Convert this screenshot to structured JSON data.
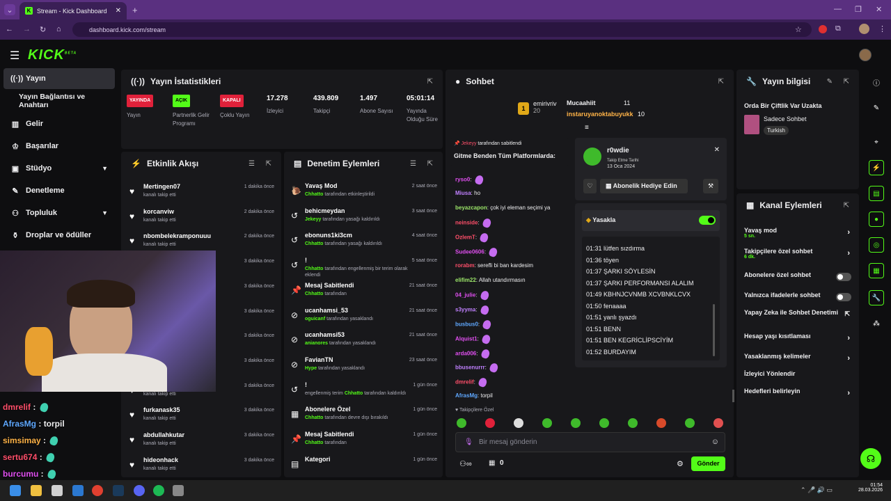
{
  "browser": {
    "tab_title": "Stream - Kick Dashboard",
    "url": "dashboard.kick.com/stream"
  },
  "brand": {
    "logo": "KICK",
    "beta": "BETA",
    "accent": "#53fc18"
  },
  "sidebar": {
    "items": [
      {
        "label": "Yayın",
        "icon": "broadcast-icon"
      },
      {
        "label": "Yayın Bağlantısı ve Anahtarı"
      },
      {
        "label": "Gelir",
        "icon": "money-icon"
      },
      {
        "label": "Başarılar",
        "icon": "trophy-icon"
      },
      {
        "label": "Stüdyo",
        "icon": "studio-icon"
      },
      {
        "label": "Denetleme",
        "icon": "wrench-icon"
      },
      {
        "label": "Topluluk",
        "icon": "community-icon"
      },
      {
        "label": "Droplar ve ödüller",
        "icon": "gift-icon"
      }
    ]
  },
  "stats": {
    "title": "Yayın İstatistikleri",
    "items": [
      {
        "badge": "YAYINDA",
        "label": "Yayın"
      },
      {
        "badge": "AÇIK",
        "label": "Partnerlik Gelir Programı"
      },
      {
        "badge": "KAPALI",
        "label": "Çoklu Yayın"
      },
      {
        "value": "17.278",
        "label": "İzleyici"
      },
      {
        "value": "439.809",
        "label": "Takipçi"
      },
      {
        "value": "1.497",
        "label": "Abone Sayısı"
      },
      {
        "value": "05:01:14",
        "label": "Yayında Olduğu Süre"
      }
    ]
  },
  "activity": {
    "title": "Etkinlik Akışı",
    "items": [
      {
        "name": "Mertingen07",
        "sub": "kanalı takip etti",
        "time": "1 dakika önce"
      },
      {
        "name": "korcanviw",
        "sub": "kanalı takip etti",
        "time": "2 dakika önce"
      },
      {
        "name": "nbombelekramponuuu",
        "sub": "kanalı takip etti",
        "time": "2 dakika önce"
      },
      {
        "name": "furkanask35",
        "sub": "kanalı takip etti",
        "time": "3 dakika önce"
      },
      {
        "name": "",
        "sub": "",
        "time": "3 dakika önce"
      },
      {
        "name": "",
        "sub": "",
        "time": "3 dakika önce"
      },
      {
        "name": "",
        "sub": "",
        "time": "3 dakika önce"
      },
      {
        "name": "",
        "sub": "",
        "time": "3 dakika önce"
      },
      {
        "name": "",
        "sub": "kanalı takip etti",
        "time": "3 dakika önce"
      },
      {
        "name": "furkanask35",
        "sub": "kanalı takip etti",
        "time": "3 dakika önce"
      },
      {
        "name": "abdullahkutar",
        "sub": "kanalı takip etti",
        "time": "3 dakika önce"
      },
      {
        "name": "hideonhack",
        "sub": "kanalı takip etti",
        "time": "3 dakika önce"
      }
    ]
  },
  "moderation": {
    "title": "Denetim Eylemleri",
    "items": [
      {
        "name": "Yavaş Mod",
        "by": "Chhatto",
        "rest": "tarafından etkinleştirildi",
        "time": "2 saat önce"
      },
      {
        "name": "behicmeydan",
        "by": "Jekeyy",
        "rest": "tarafından yasağı kaldırıldı",
        "time": "3 saat önce"
      },
      {
        "name": "ebonuns1ki3cm",
        "by": "Chhatto",
        "rest": "tarafından yasağı kaldırıldı",
        "time": "4 saat önce"
      },
      {
        "name": "!",
        "by": "Chhatto",
        "rest": "tarafından engellenmiş bir terim olarak eklendi",
        "time": "5 saat önce"
      },
      {
        "name": "Mesaj Sabitlendi",
        "by": "Chhatto",
        "rest": "tarafından",
        "time": "21 saat önce"
      },
      {
        "name": "ucanhamsi_53",
        "by": "oguicanf",
        "rest": "tarafından yasaklandı",
        "time": "21 saat önce"
      },
      {
        "name": "ucanhamsi53",
        "by": "anianores",
        "rest": "tarafından yasaklandı",
        "time": "21 saat önce"
      },
      {
        "name": "FavianTN",
        "by": "Hype",
        "rest": "tarafından yasaklandı",
        "time": "23 saat önce"
      },
      {
        "name": "!",
        "by": "Chhatto",
        "rest": "tarafından kaldırıldı",
        "pre": "engellenmiş terim",
        "time": "1 gün önce"
      },
      {
        "name": "Abonelere Özel",
        "by": "Chhatto",
        "rest": "tarafından devre dışı bırakıldı",
        "time": "1 gün önce"
      },
      {
        "name": "Mesaj Sabitlendi",
        "by": "Chhatto",
        "rest": "tarafından",
        "time": "1 gün önce"
      },
      {
        "name": "Kategori",
        "by": "",
        "rest": "",
        "time": "1 gün önce"
      }
    ]
  },
  "chat": {
    "title": "Sohbet",
    "top": [
      {
        "rank": "1",
        "name": "emirivriv",
        "count": "20"
      },
      {
        "name": "Mucaahiit",
        "count": "11"
      },
      {
        "name": "instaruyanoktabuyukk",
        "count": "10"
      }
    ],
    "pinned_by": "Jekeyy",
    "pinned_rest": "tarafından sabitlendi",
    "pinned_msg": "Gitme Benden Tüm Platformlarda:",
    "messages": [
      {
        "user": "ryso0",
        "text": "",
        "color": "#e04ff0"
      },
      {
        "user": "Miusa",
        "text": "ho",
        "color": "#c080ff"
      },
      {
        "user": "beyazcapon",
        "text": "çok iyi eleman seçimi ya",
        "color": "#9de86a"
      },
      {
        "user": "neinside",
        "text": "",
        "color": "#ff4f6a"
      },
      {
        "user": "OzlemT",
        "text": "",
        "color": "#ff4f6a"
      },
      {
        "user": "Sudee0606",
        "text": "",
        "color": "#e04ff0"
      },
      {
        "user": "rorabm",
        "text": "serefli bi ban kardesim",
        "color": "#ff4f6a"
      },
      {
        "user": "elifim22",
        "text": "Allah utandırmasın",
        "color": "#9de86a"
      },
      {
        "user": "04_julie",
        "text": "",
        "color": "#e04ff0"
      },
      {
        "user": "s3yyma",
        "text": "",
        "color": "#c080ff"
      },
      {
        "user": "busbus0",
        "text": "",
        "color": "#5fa8ff"
      },
      {
        "user": "Alquist1",
        "text": "",
        "color": "#e04ff0"
      },
      {
        "user": "arda006",
        "text": "",
        "color": "#e04ff0"
      },
      {
        "user": "bbusenurrr",
        "text": "",
        "color": "#c080ff"
      },
      {
        "user": "dmrelif",
        "text": "",
        "color": "#ff4f6a"
      },
      {
        "user": "AfrasMg",
        "text": "torpil",
        "color": "#5fa8ff"
      }
    ],
    "followers_only": "Takipçilere Özel",
    "input_placeholder": "Bir mesaj gönderin",
    "count": "0",
    "send": "Gönder"
  },
  "popup": {
    "user": "r0wdie",
    "follow_label": "Takip Etme Tarihi",
    "follow_date": "13 Oca 2024",
    "gift": "Abonelik Hediye Edin",
    "ban": "Yasakla",
    "log": [
      "01:31 lütfen sızdırma",
      "01:36 töyen",
      "01:37 ŞARKI SÖYLESİN",
      "01:37 ŞARKI PERFORMANSI ALALIM",
      "01:49 KBHNJCVNMB XCVBNKLCVX",
      "01:50 fenaaaa",
      "01:51 yanlı şyazdı",
      "01:51 BENN",
      "01:51 BEN KEGRİCLİPSCİYİM",
      "01:52 BURDAYIM"
    ]
  },
  "info": {
    "title": "Yayın bilgisi",
    "stream_title": "Orda Bir Çiftlik Var Uzakta",
    "category": "Sadece Sohbet",
    "tag": "Turkish"
  },
  "channel": {
    "title": "Kanal Eylemleri",
    "items": [
      {
        "label": "Yavaş mod",
        "sub": "5 sn."
      },
      {
        "label": "Takipçilere özel sohbet",
        "sub": "6 dk."
      },
      {
        "label": "Abonelere özel sohbet"
      },
      {
        "label": "Yalnızca ifadelerle sohbet"
      },
      {
        "label": "Yapay Zeka ile Sohbet Denetimi"
      },
      {
        "label": "Hesap yaşı kısıtlaması"
      },
      {
        "label": "Yasaklanmış kelimeler"
      },
      {
        "label": "İzleyici Yönlendir"
      },
      {
        "label": "Hedefleri belirleyin"
      }
    ]
  },
  "overlay": [
    {
      "user": "dmrelif",
      "text": "",
      "color": "#ff4f6a"
    },
    {
      "user": "AfrasMg",
      "text": "torpil",
      "color": "#5fa8ff"
    },
    {
      "user": "simsimay",
      "text": "",
      "color": "#ffb347"
    },
    {
      "user": "sertu674",
      "text": "",
      "color": "#ff4f6a"
    },
    {
      "user": "burcumu",
      "text": "",
      "color": "#e04ff0"
    }
  ],
  "taskbar": {
    "time": "01:54",
    "date": "28.03.2026"
  }
}
